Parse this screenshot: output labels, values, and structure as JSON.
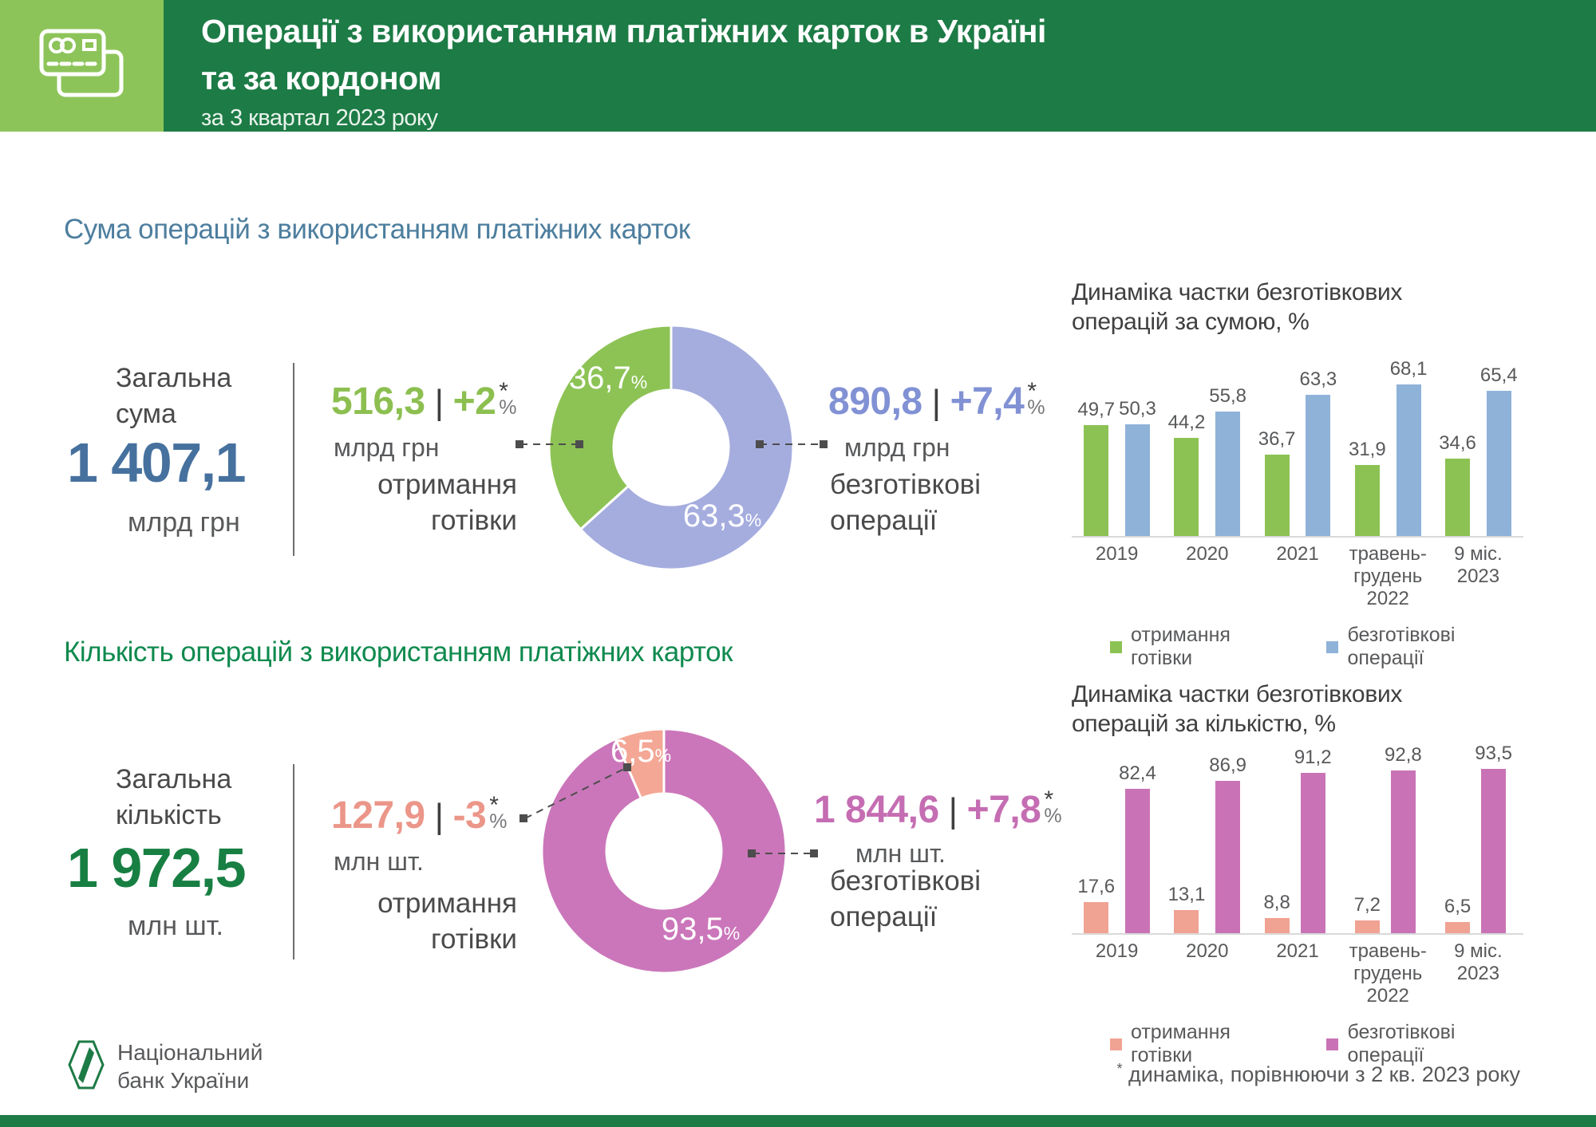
{
  "misc": {
    "percent": "%",
    "bar": "|",
    "star": "*"
  },
  "header": {
    "title_line1": "Операції з використанням платіжних карток в Україні",
    "title_line2": "та за кордоном",
    "subtitle": "за 3 квартал 2023 року"
  },
  "logo": {
    "line1": "Національний",
    "line2": "банк України"
  },
  "footnote": {
    "star": "*",
    "text": " динаміка, порівнюючи з 2 кв. 2023 року"
  },
  "sections": {
    "sum": {
      "heading": "Сума операцій з використанням платіжних карток",
      "total": {
        "label_line1": "Загальна",
        "label_line2": "сума",
        "value": "1 407,1",
        "unit": "млрд грн"
      },
      "cash": {
        "value": "516,3",
        "change": "+2",
        "unit": "млрд грн",
        "label_line1": "отримання",
        "label_line2": "готівки"
      },
      "cashless": {
        "value": "890,8",
        "change": "+7,4",
        "unit": "млрд грн",
        "label_line1": "безготівкові",
        "label_line2": "операції"
      }
    },
    "count": {
      "heading": "Кількість операцій з використанням платіжних карток",
      "total": {
        "label_line1": "Загальна",
        "label_line2": "кількість",
        "value": "1 972,5",
        "unit": "млн шт."
      },
      "cash": {
        "value": "127,9",
        "change": "-3",
        "unit": "млн шт.",
        "label_line1": "отримання",
        "label_line2": "готівки"
      },
      "cashless": {
        "value": "1 844,6",
        "change": "+7,8",
        "unit": "млн шт.",
        "label_line1": "безготівкові",
        "label_line2": "операції"
      }
    }
  },
  "chart_data": [
    {
      "type": "pie",
      "subtype": "donut",
      "name": "structure-of-sum",
      "start_angle": "top",
      "direction": "clockwise",
      "segments": [
        {
          "name": "безготівкові операції",
          "value": 63.3,
          "label": "63,3",
          "color": "#a5addf"
        },
        {
          "name": "отримання готівки",
          "value": 36.7,
          "label": "36,7",
          "color": "#8dc355"
        }
      ]
    },
    {
      "type": "bar",
      "name": "cashless-share-by-sum",
      "title_line1": "Динаміка частки безготівкових",
      "title_line2": "операцій за сумою, %",
      "categories": [
        "2019",
        "2020",
        "2021",
        "травень-\nгрудень 2022",
        "9 міс. 2023"
      ],
      "series": [
        {
          "name": "отримання готівки",
          "color": "#8cc253",
          "values": [
            49.7,
            44.2,
            36.7,
            31.9,
            34.6
          ]
        },
        {
          "name": "безготівкові операції",
          "color": "#8fb2d8",
          "values": [
            50.3,
            55.8,
            63.3,
            68.1,
            65.4
          ]
        }
      ],
      "ylim": [
        0,
        100
      ],
      "grid": false,
      "legend_position": "bottom"
    },
    {
      "type": "pie",
      "subtype": "donut",
      "name": "structure-of-count",
      "start_angle": "top",
      "direction": "clockwise",
      "segments": [
        {
          "name": "безготівкові операції",
          "value": 93.5,
          "label": "93,5",
          "color": "#cb76ba"
        },
        {
          "name": "отримання готівки",
          "value": 6.5,
          "label": "6,5",
          "color": "#f4a795"
        }
      ]
    },
    {
      "type": "bar",
      "name": "cashless-share-by-count",
      "title_line1": "Динаміка частки безготівкових",
      "title_line2": "операцій за кількістю, %",
      "categories": [
        "2019",
        "2020",
        "2021",
        "травень-\nгрудень 2022",
        "9 міс. 2023"
      ],
      "series": [
        {
          "name": "отримання готівки",
          "color": "#f0a293",
          "values": [
            17.6,
            13.1,
            8.8,
            7.2,
            6.5
          ]
        },
        {
          "name": "безготівкові операції",
          "color": "#c973b6",
          "values": [
            82.4,
            86.9,
            91.2,
            92.8,
            93.5
          ]
        }
      ],
      "ylim": [
        0,
        100
      ],
      "grid": false,
      "legend_position": "bottom"
    }
  ],
  "colors": {
    "header_green": "#1d7b46",
    "icon_box_green": "#8dc45a",
    "heading_sum": "#4d7e9e",
    "heading_count": "#0f8a4e",
    "total_sum": "#46719e",
    "total_count": "#177f42",
    "cash_sum_accent": "#8cbf50",
    "cashless_sum_accent": "#8191d4",
    "cash_count_accent": "#eb9689",
    "cashless_count_accent": "#c56db3",
    "text_dark": "#3f3f41",
    "text_gray": "#58595b"
  }
}
